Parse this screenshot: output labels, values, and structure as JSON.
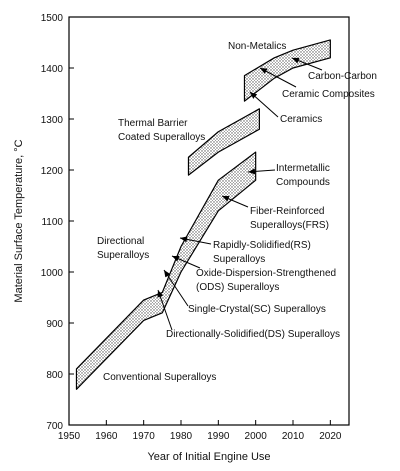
{
  "chart_data": {
    "type": "area",
    "x_label": "Year of Initial Engine Use",
    "y_label": "Material Surface Temperature, °C",
    "xlim": [
      1950,
      2025
    ],
    "xticks": [
      1950,
      1960,
      1970,
      1980,
      1990,
      2000,
      2010,
      2020
    ],
    "ylim": [
      700,
      1500
    ],
    "yticks": [
      700,
      800,
      900,
      1000,
      1100,
      1200,
      1300,
      1400,
      1500
    ],
    "color": "#999999",
    "bands": [
      {
        "x": [
          1952,
          1960,
          1970,
          1975,
          1980,
          1990,
          2000
        ],
        "lower": [
          770,
          830,
          905,
          920,
          1000,
          1120,
          1180
        ],
        "upper": [
          810,
          870,
          945,
          960,
          1050,
          1180,
          1235
        ]
      },
      {
        "x": [
          1982,
          1990,
          2001
        ],
        "lower": [
          1190,
          1235,
          1280
        ],
        "upper": [
          1225,
          1275,
          1320
        ]
      },
      {
        "x": [
          1997,
          2005,
          2010,
          2020
        ],
        "lower": [
          1335,
          1380,
          1400,
          1420
        ],
        "upper": [
          1385,
          1420,
          1435,
          1455
        ]
      }
    ],
    "annotations": [
      [
        "Non-Metalics"
      ],
      [
        "Carbon-Carbon"
      ],
      [
        "Ceramic Composites"
      ],
      [
        "Ceramics"
      ],
      [
        "Thermal Barrier",
        "Coated Superalloys"
      ],
      [
        "Intermetallic",
        "Compounds"
      ],
      [
        "Fiber-Reinforced",
        "Superalloys(FRS)"
      ],
      [
        "Directional",
        "Superalloys"
      ],
      [
        "Rapidly-Solidified(RS)",
        "Superalloys"
      ],
      [
        "Oxide-Dispersion-Strengthened",
        "(ODS) Superalloys"
      ],
      [
        "Single-Crystal(SC) Superalloys"
      ],
      [
        "Directionally-Solidified(DS) Superalloys"
      ],
      [
        "Conventional Superalloys"
      ]
    ]
  }
}
